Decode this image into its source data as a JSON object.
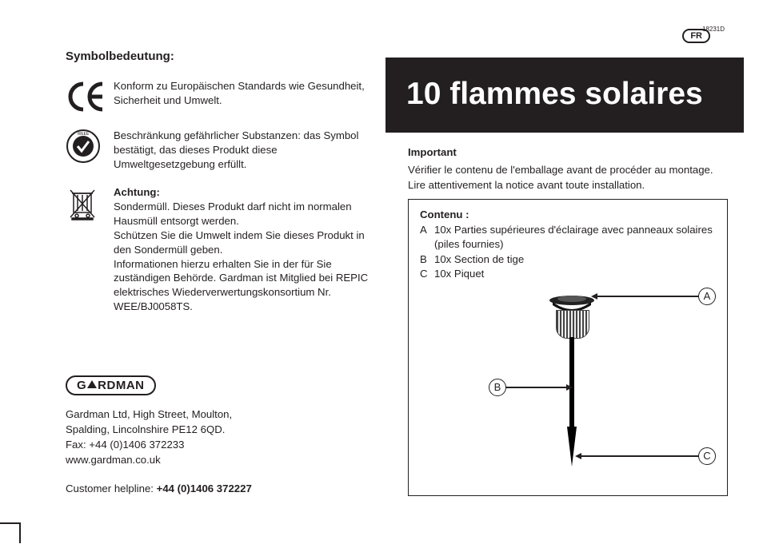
{
  "docid": "18231D",
  "lang_badge": "FR",
  "left": {
    "heading": "Symbolbedeutung:",
    "ce_text": "Konform zu Europäischen Standards wie Gesundheit, Sicherheit und Umwelt.",
    "weee_text": "Beschränkung gefährlicher Substanzen: das Symbol bestätigt, das dieses Produkt diese Umweltgesetzgebung erfüllt.",
    "achtung_label": "Achtung:",
    "achtung_text": "Sondermüll. Dieses Produkt darf nicht im normalen Hausmüll entsorgt werden.\nSchützen Sie die Umwelt indem Sie dieses Produkt in den Sondermüll geben.\nInformationen hierzu erhalten Sie in der für Sie zuständigen Behörde. Gardman ist Mitglied bei REPIC elektrisches Wiederverwertungskonsortium Nr. WEE/BJ0058TS."
  },
  "company": {
    "brand_left": "G",
    "brand_right": "RDMAN",
    "address": "Gardman Ltd, High Street, Moulton,\nSpalding, Lincolnshire PE12 6QD.\nFax: +44 (0)1406 372233\nwww.gardman.co.uk",
    "helpline_label": "Customer helpline: ",
    "helpline_no": "+44 (0)1406 372227"
  },
  "title": "10 flammes solaires",
  "important": {
    "heading": "Important",
    "body": "Vérifier le contenu de l'emballage avant de procéder au montage.\nLire attentivement la notice avant toute installation."
  },
  "contents": {
    "heading": "Contenu :",
    "rows": [
      {
        "k": "A",
        "v": "10x Parties supérieures d'éclairage avec panneaux solaires (piles fournies)"
      },
      {
        "k": "B",
        "v": "10x Section de tige"
      },
      {
        "k": "C",
        "v": "10x Piquet"
      }
    ],
    "labels": {
      "A": "A",
      "B": "B",
      "C": "C"
    }
  },
  "colors": {
    "ink": "#231f20",
    "paper": "#ffffff"
  }
}
